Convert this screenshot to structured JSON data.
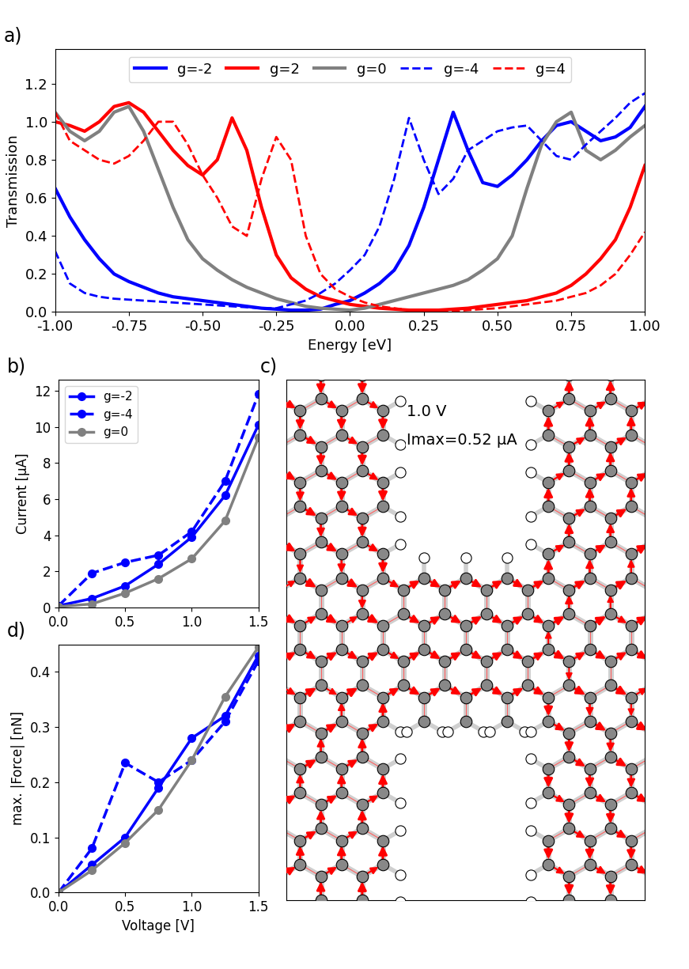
{
  "chart_data": [
    {
      "type": "line",
      "annotations": [
        "a)"
      ],
      "x_label": "Energy [eV]",
      "y_label": "Transmission",
      "x": [
        -1.0,
        -0.95,
        -0.9,
        -0.85,
        -0.8,
        -0.75,
        -0.7,
        -0.65,
        -0.6,
        -0.55,
        -0.5,
        -0.45,
        -0.4,
        -0.35,
        -0.3,
        -0.25,
        -0.2,
        -0.15,
        -0.1,
        -0.05,
        0.0,
        0.05,
        0.1,
        0.15,
        0.2,
        0.25,
        0.3,
        0.35,
        0.4,
        0.45,
        0.5,
        0.55,
        0.6,
        0.65,
        0.7,
        0.75,
        0.8,
        0.85,
        0.9,
        0.95,
        1.0
      ],
      "xlim": [
        -1.0,
        1.0
      ],
      "xticks": [
        {
          "value": -1.0,
          "label": "-1.00"
        },
        {
          "value": -0.75,
          "label": "-0.75"
        },
        {
          "value": -0.5,
          "label": "-0.50"
        },
        {
          "value": -0.25,
          "label": "-0.25"
        },
        {
          "value": 0.0,
          "label": "0.00"
        },
        {
          "value": 0.25,
          "label": "0.25"
        },
        {
          "value": 0.5,
          "label": "0.50"
        },
        {
          "value": 0.75,
          "label": "0.75"
        },
        {
          "value": 1.0,
          "label": "1.00"
        }
      ],
      "ylim": [
        0.0,
        1.38
      ],
      "yticks": [
        0.0,
        0.2,
        0.4,
        0.6,
        0.8,
        1.0,
        1.2
      ],
      "legend": "upper center",
      "series": [
        {
          "name": "g=-2",
          "color": "#0000ff",
          "line_style": "solid",
          "values": [
            0.65,
            0.5,
            0.38,
            0.28,
            0.2,
            0.16,
            0.13,
            0.1,
            0.08,
            0.07,
            0.06,
            0.05,
            0.04,
            0.03,
            0.02,
            0.015,
            0.01,
            0.01,
            0.015,
            0.04,
            0.06,
            0.1,
            0.15,
            0.22,
            0.35,
            0.55,
            0.8,
            1.05,
            0.85,
            0.68,
            0.66,
            0.72,
            0.8,
            0.9,
            0.98,
            1.0,
            0.95,
            0.9,
            0.92,
            0.97,
            1.08
          ]
        },
        {
          "name": "g=2",
          "color": "#ff0000",
          "line_style": "solid",
          "values": [
            1.0,
            0.98,
            0.95,
            1.0,
            1.08,
            1.1,
            1.05,
            0.95,
            0.85,
            0.77,
            0.72,
            0.8,
            1.02,
            0.85,
            0.55,
            0.3,
            0.18,
            0.12,
            0.08,
            0.06,
            0.04,
            0.03,
            0.02,
            0.015,
            0.01,
            0.01,
            0.01,
            0.015,
            0.02,
            0.03,
            0.04,
            0.05,
            0.06,
            0.08,
            0.1,
            0.14,
            0.2,
            0.28,
            0.38,
            0.55,
            0.77
          ]
        },
        {
          "name": "g=0",
          "color": "#808080",
          "line_style": "solid",
          "values": [
            1.05,
            0.95,
            0.9,
            0.95,
            1.05,
            1.08,
            0.95,
            0.75,
            0.55,
            0.38,
            0.28,
            0.22,
            0.17,
            0.13,
            0.1,
            0.07,
            0.05,
            0.03,
            0.02,
            0.015,
            0.01,
            0.02,
            0.04,
            0.06,
            0.08,
            0.1,
            0.12,
            0.14,
            0.17,
            0.22,
            0.28,
            0.4,
            0.65,
            0.88,
            1.0,
            1.05,
            0.85,
            0.8,
            0.85,
            0.92,
            0.98
          ]
        },
        {
          "name": "g=-4",
          "color": "#0000ff",
          "line_style": "dashed",
          "values": [
            0.32,
            0.15,
            0.1,
            0.08,
            0.07,
            0.065,
            0.06,
            0.055,
            0.05,
            0.045,
            0.04,
            0.035,
            0.03,
            0.025,
            0.02,
            0.02,
            0.04,
            0.06,
            0.1,
            0.15,
            0.22,
            0.3,
            0.45,
            0.7,
            1.02,
            0.8,
            0.62,
            0.7,
            0.85,
            0.9,
            0.95,
            0.97,
            0.98,
            0.9,
            0.82,
            0.8,
            0.88,
            0.95,
            1.02,
            1.1,
            1.15
          ]
        },
        {
          "name": "g=4",
          "color": "#ff0000",
          "line_style": "dashed",
          "values": [
            1.05,
            0.9,
            0.85,
            0.8,
            0.78,
            0.82,
            0.9,
            1.0,
            1.0,
            0.88,
            0.72,
            0.6,
            0.45,
            0.4,
            0.7,
            0.92,
            0.8,
            0.4,
            0.2,
            0.12,
            0.08,
            0.05,
            0.03,
            0.02,
            0.01,
            0.005,
            0.005,
            0.005,
            0.01,
            0.015,
            0.02,
            0.03,
            0.04,
            0.05,
            0.06,
            0.08,
            0.1,
            0.14,
            0.2,
            0.3,
            0.42
          ]
        }
      ]
    },
    {
      "type": "line",
      "annotations": [
        "b)"
      ],
      "y_label": "Current [μA]",
      "x": [
        0.0,
        0.25,
        0.5,
        0.75,
        1.0,
        1.25,
        1.5
      ],
      "xlim": [
        0.0,
        1.5
      ],
      "xticks": [
        0.0,
        0.5,
        1.0,
        1.5
      ],
      "ylim": [
        0,
        12.6
      ],
      "yticks": [
        0,
        2,
        4,
        6,
        8,
        10,
        12
      ],
      "legend": "upper left",
      "series": [
        {
          "name": "g=-2",
          "color": "#0000ff",
          "line_style": "solid",
          "marker": "circle",
          "values": [
            0.1,
            0.5,
            1.2,
            2.4,
            3.9,
            6.2,
            10.1
          ]
        },
        {
          "name": "g=-4",
          "color": "#0000ff",
          "line_style": "dashed",
          "marker": "circle",
          "values": [
            0.1,
            1.9,
            2.5,
            2.9,
            4.2,
            7.0,
            11.8
          ]
        },
        {
          "name": "g=0",
          "color": "#808080",
          "line_style": "solid",
          "marker": "circle",
          "values": [
            0.05,
            0.2,
            0.8,
            1.6,
            2.7,
            4.8,
            9.4
          ]
        }
      ]
    },
    {
      "type": "line",
      "annotations": [
        "d)"
      ],
      "x_label": "Voltage [V]",
      "y_label": "max. |Force| [nN]",
      "x": [
        0.0,
        0.25,
        0.5,
        0.75,
        1.0,
        1.25,
        1.5
      ],
      "xlim": [
        0.0,
        1.5
      ],
      "xticks": [
        0.0,
        0.5,
        1.0,
        1.5
      ],
      "ylim": [
        0.0,
        0.45
      ],
      "yticks": [
        0.0,
        0.1,
        0.2,
        0.3,
        0.4
      ],
      "series": [
        {
          "color": "#0000ff",
          "line_style": "solid",
          "marker": "circle",
          "values": [
            0.0,
            0.05,
            0.1,
            0.19,
            0.28,
            0.32,
            0.43
          ]
        },
        {
          "color": "#0000ff",
          "line_style": "dashed",
          "marker": "circle",
          "values": [
            0.0,
            0.08,
            0.235,
            0.2,
            0.24,
            0.31,
            0.42
          ]
        },
        {
          "color": "#808080",
          "line_style": "solid",
          "marker": "circle",
          "values": [
            0.0,
            0.04,
            0.09,
            0.15,
            0.24,
            0.355,
            0.445
          ]
        }
      ]
    }
  ],
  "diagram": {
    "annotations": [
      "c)"
    ],
    "texts": [
      "1.0 V",
      "Imax=0.52 μA"
    ]
  }
}
